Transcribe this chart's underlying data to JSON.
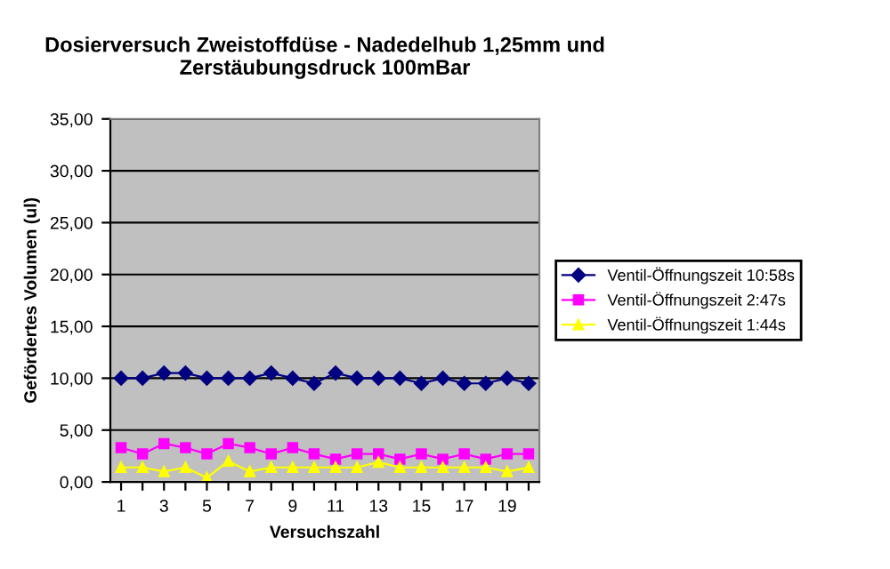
{
  "chart_data": {
    "type": "line",
    "title": "Dosierversuch Zweistoffdüse - Nadedelhub 1,25mm und\nZerstäubungsdruck 100mBar",
    "xlabel": "Versuchszahl",
    "ylabel": "Gefördertes Volumen (ul)",
    "categories": [
      "1",
      null,
      "3",
      null,
      "5",
      null,
      "7",
      null,
      "9",
      null,
      "11",
      null,
      "13",
      null,
      "15",
      null,
      "17",
      null,
      "19",
      null
    ],
    "series": [
      {
        "name": "Ventil-Öffnungszeit 10:58s",
        "color": "#000080",
        "marker": "diamond",
        "values": [
          10,
          10,
          10.5,
          10.5,
          10,
          10,
          10,
          10.5,
          10,
          9.5,
          10.5,
          10,
          10,
          10,
          9.5,
          10,
          9.5,
          9.5,
          10,
          9.5
        ]
      },
      {
        "name": "Ventil-Öffnungszeit 2:47s",
        "color": "#ff00ff",
        "marker": "square",
        "values": [
          3.3,
          2.7,
          3.7,
          3.3,
          2.7,
          3.7,
          3.3,
          2.7,
          3.3,
          2.7,
          2.2,
          2.7,
          2.7,
          2.2,
          2.7,
          2.2,
          2.7,
          2.2,
          2.7,
          2.7
        ]
      },
      {
        "name": "Ventil-Öffnungszeit 1:44s",
        "color": "#ffff00",
        "marker": "triangle",
        "values": [
          1.4,
          1.4,
          1.0,
          1.4,
          0.4,
          2.0,
          1.0,
          1.4,
          1.4,
          1.4,
          1.4,
          1.4,
          1.9,
          1.4,
          1.4,
          1.4,
          1.4,
          1.4,
          1.0,
          1.4
        ]
      }
    ],
    "ylim": [
      0,
      35
    ],
    "yticks": [
      {
        "value": 0,
        "label": "0,00"
      },
      {
        "value": 5,
        "label": "5,00"
      },
      {
        "value": 10,
        "label": "10,00"
      },
      {
        "value": 15,
        "label": "15,00"
      },
      {
        "value": 20,
        "label": "20,00"
      },
      {
        "value": 25,
        "label": "25,00"
      },
      {
        "value": 30,
        "label": "30,00"
      },
      {
        "value": 35,
        "label": "35,00"
      }
    ],
    "grid": "y",
    "legend": "right",
    "line_style": "solid"
  }
}
